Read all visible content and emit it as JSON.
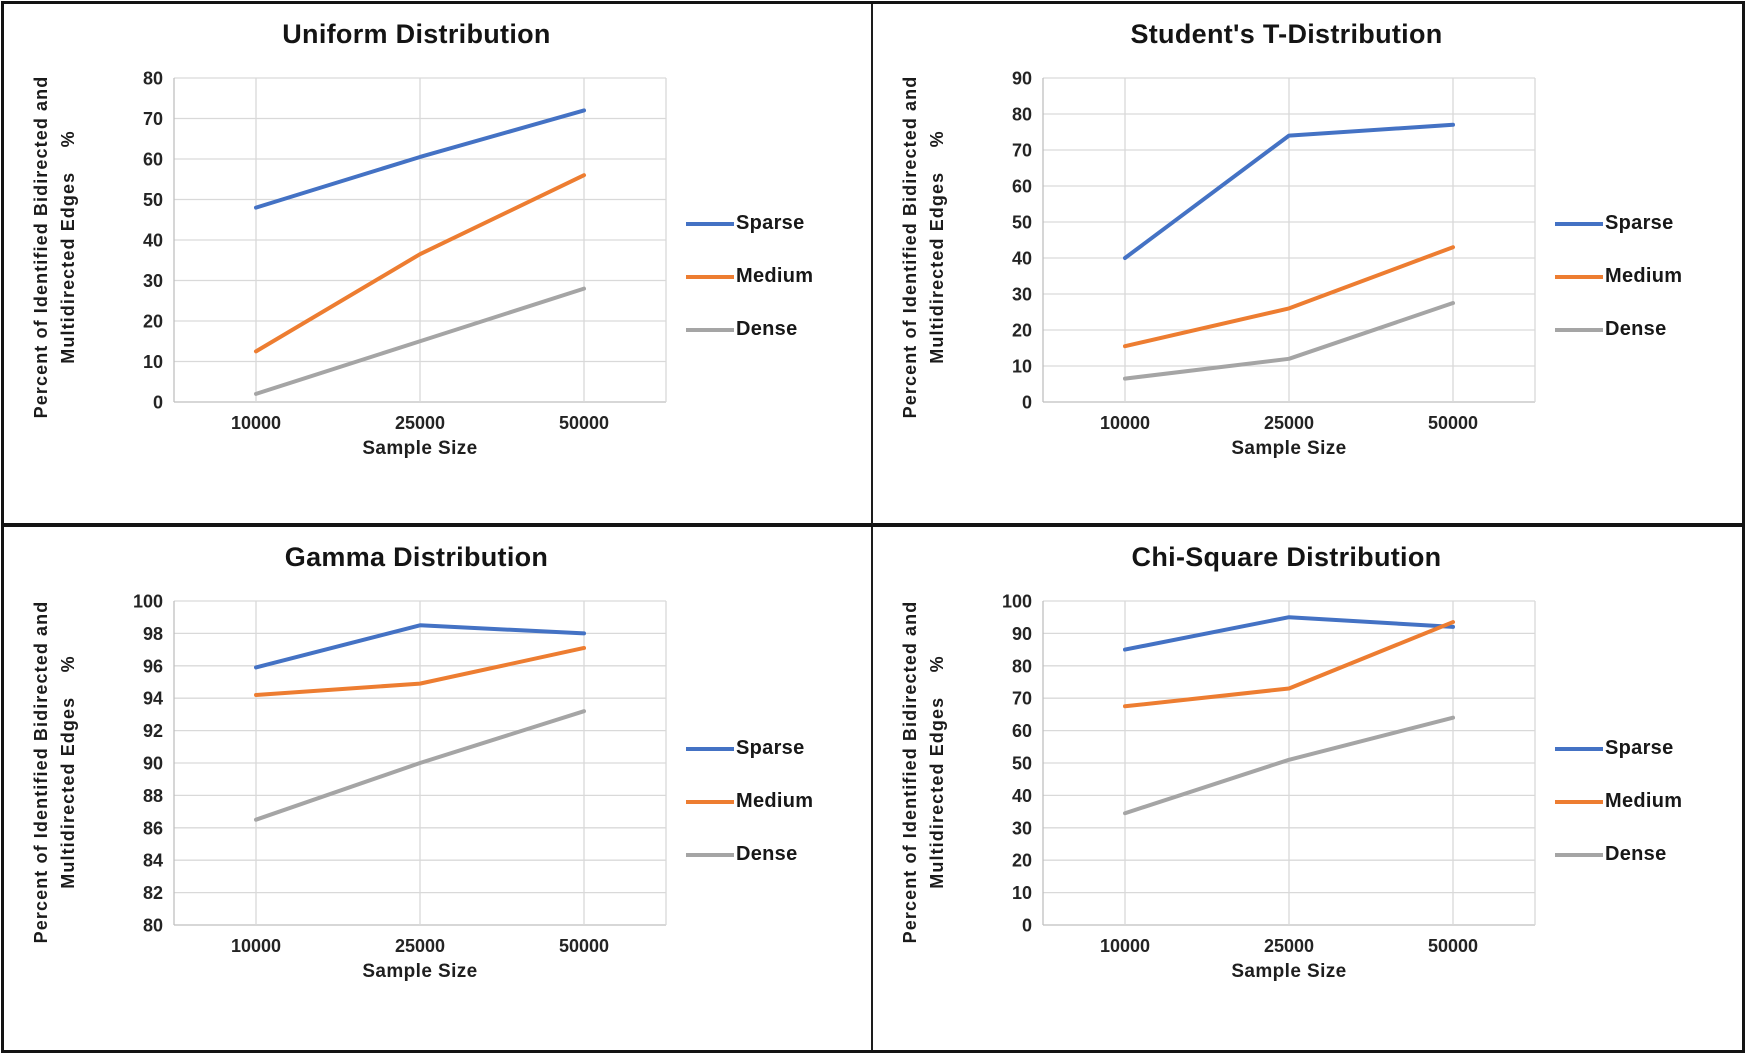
{
  "page": {
    "background": "#ffffff",
    "frame_border_color": "#131313"
  },
  "shared": {
    "ylabel_line1": "Percent of Identified Bidirected and",
    "ylabel_line2": "Multidirected Edges    %",
    "xlabel": "Sample Size",
    "legend_entries": [
      "Sparse",
      "Medium",
      "Dense"
    ],
    "colors": {
      "sparse": "#4472C4",
      "medium": "#ED7D31",
      "dense": "#A5A5A5",
      "gridline": "#D9D9D9",
      "axis_line": "#BFBFBF",
      "tick_text": "#242424"
    }
  },
  "chart_data": [
    {
      "type": "line",
      "title": "Uniform Distribution",
      "xlabel": "Sample Size",
      "ylabel": "Percent of Identified Bidirected and Multidirected Edges %",
      "categories": [
        "10000",
        "25000",
        "50000"
      ],
      "series": [
        {
          "name": "Sparse",
          "color": "#4472C4",
          "values": [
            48,
            60.5,
            72
          ]
        },
        {
          "name": "Medium",
          "color": "#ED7D31",
          "values": [
            12.5,
            36.5,
            56
          ]
        },
        {
          "name": "Dense",
          "color": "#A5A5A5",
          "values": [
            2,
            15,
            28
          ]
        }
      ],
      "ylim": [
        0,
        80
      ],
      "ytick_step": 10,
      "grid": true,
      "legend_position": "right"
    },
    {
      "type": "line",
      "title": "Student's T-Distribution",
      "xlabel": "Sample Size",
      "ylabel": "Percent of Identified Bidirected and Multidirected Edges %",
      "categories": [
        "10000",
        "25000",
        "50000"
      ],
      "series": [
        {
          "name": "Sparse",
          "color": "#4472C4",
          "values": [
            40,
            74,
            77
          ]
        },
        {
          "name": "Medium",
          "color": "#ED7D31",
          "values": [
            15.5,
            26,
            43
          ]
        },
        {
          "name": "Dense",
          "color": "#A5A5A5",
          "values": [
            6.5,
            12,
            27.5
          ]
        }
      ],
      "ylim": [
        0,
        90
      ],
      "ytick_step": 10,
      "grid": true,
      "legend_position": "right"
    },
    {
      "type": "line",
      "title": "Gamma Distribution",
      "xlabel": "Sample Size",
      "ylabel": "Percent of Identified Bidirected and Multidirected Edges %",
      "categories": [
        "10000",
        "25000",
        "50000"
      ],
      "series": [
        {
          "name": "Sparse",
          "color": "#4472C4",
          "values": [
            95.9,
            98.5,
            98
          ]
        },
        {
          "name": "Medium",
          "color": "#ED7D31",
          "values": [
            94.2,
            94.9,
            97.1
          ]
        },
        {
          "name": "Dense",
          "color": "#A5A5A5",
          "values": [
            86.5,
            90,
            93.2
          ]
        }
      ],
      "ylim": [
        80,
        100
      ],
      "ytick_step": 2,
      "grid": true,
      "legend_position": "right"
    },
    {
      "type": "line",
      "title": "Chi-Square Distribution",
      "xlabel": "Sample Size",
      "ylabel": "Percent of Identified Bidirected and Multidirected Edges %",
      "categories": [
        "10000",
        "25000",
        "50000"
      ],
      "series": [
        {
          "name": "Sparse",
          "color": "#4472C4",
          "values": [
            85,
            95,
            92
          ]
        },
        {
          "name": "Medium",
          "color": "#ED7D31",
          "values": [
            67.5,
            73,
            93.5
          ]
        },
        {
          "name": "Dense",
          "color": "#A5A5A5",
          "values": [
            34.5,
            51,
            64
          ]
        }
      ],
      "ylim": [
        0,
        100
      ],
      "ytick_step": 10,
      "grid": true,
      "legend_position": "right"
    }
  ]
}
